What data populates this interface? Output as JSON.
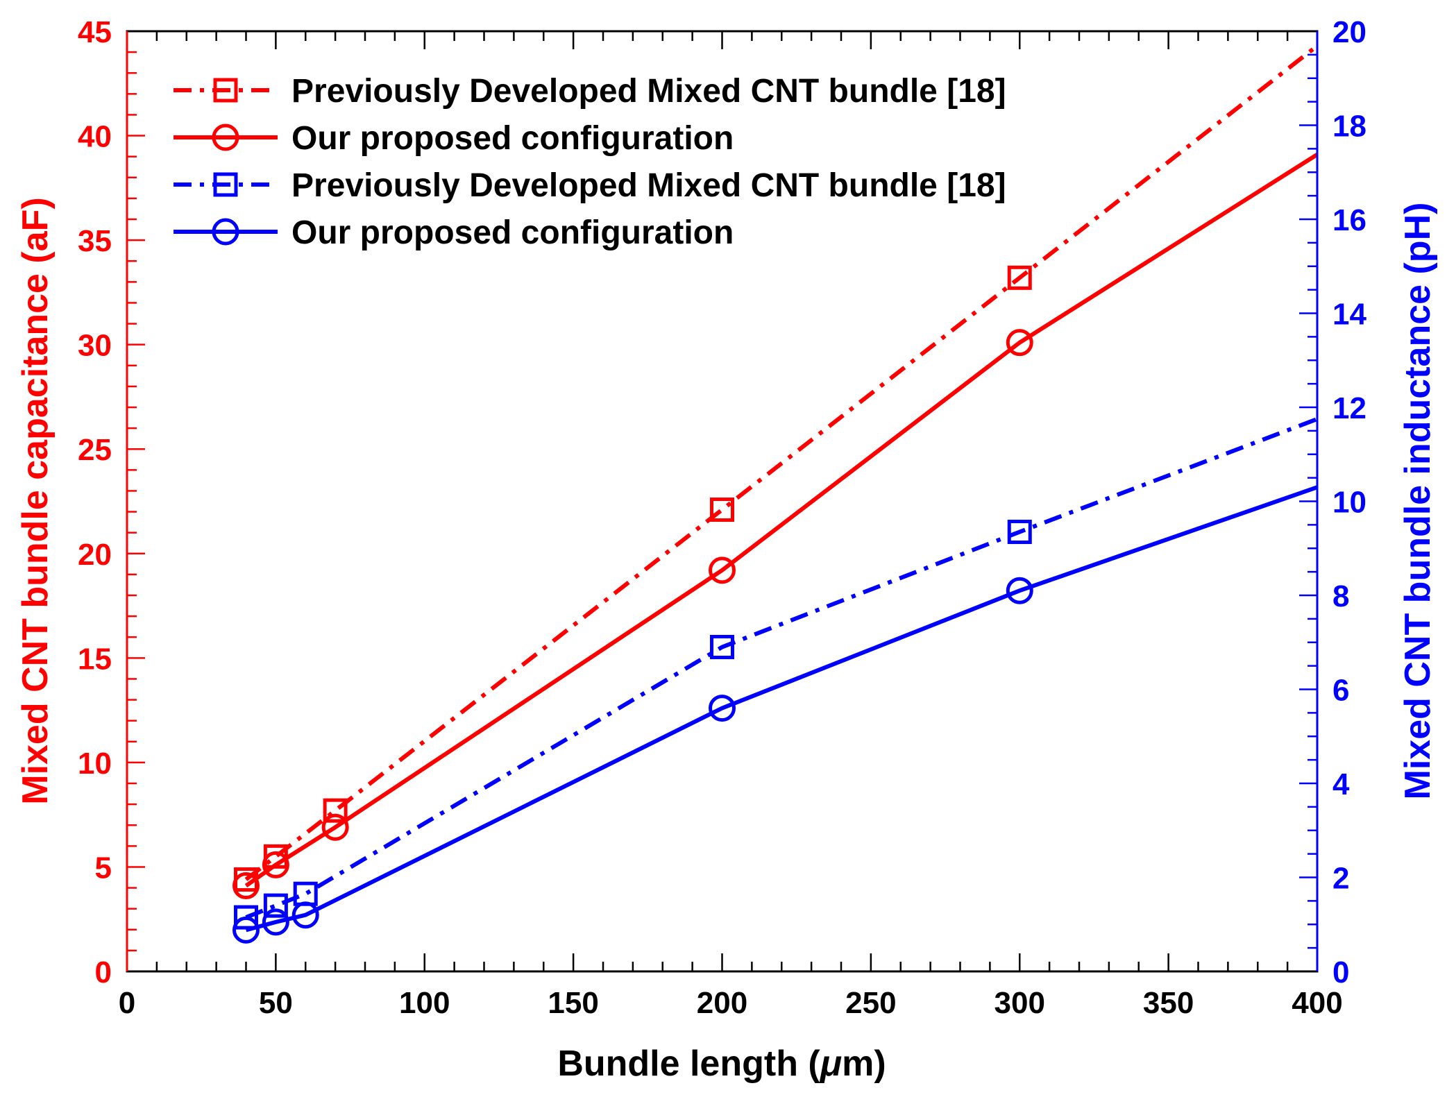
{
  "chart_data": {
    "type": "line",
    "xlabel_prefix": "Bundle length (",
    "xlabel_mu": "μ",
    "xlabel_suffix": "m)",
    "ylabel_left": "Mixed CNT bundle capacitance (aF)",
    "ylabel_right": "Mixed CNT bundle inductance (pH)",
    "xlim": [
      0,
      400
    ],
    "ylim_left": [
      0,
      45
    ],
    "ylim_right": [
      0,
      20
    ],
    "x_ticks": [
      "0",
      "50",
      "100",
      "150",
      "200",
      "250",
      "300",
      "350",
      "400"
    ],
    "y_left_ticks": [
      "0",
      "5",
      "10",
      "15",
      "20",
      "25",
      "30",
      "35",
      "40",
      "45"
    ],
    "y_right_ticks": [
      "0",
      "2",
      "4",
      "6",
      "8",
      "10",
      "12",
      "14",
      "16",
      "18",
      "20"
    ],
    "colors": {
      "left": "#ff0000",
      "right": "#0000ff",
      "axis": "#000000"
    },
    "series": [
      {
        "name": "Previously Developed Mixed CNT bundle [18]",
        "axis": "left",
        "color": "#ff0000",
        "style": "dashdot",
        "marker": "square",
        "x": [
          40,
          50,
          70,
          200,
          300,
          400
        ],
        "y": [
          4.4,
          5.5,
          7.7,
          22.1,
          33.2,
          44.3
        ],
        "marker_count": 5
      },
      {
        "name": "Our proposed configuration",
        "axis": "left",
        "color": "#ff0000",
        "style": "solid",
        "marker": "circle",
        "x": [
          40,
          50,
          70,
          200,
          300,
          400
        ],
        "y": [
          4.1,
          5.1,
          6.9,
          19.2,
          30.1,
          39.1
        ],
        "marker_count": 5
      },
      {
        "name": "Previously Developed Mixed CNT bundle [18]",
        "axis": "right",
        "color": "#0000ff",
        "style": "dashdot",
        "marker": "square",
        "x": [
          40,
          50,
          60,
          200,
          300,
          400
        ],
        "y": [
          1.15,
          1.4,
          1.65,
          6.9,
          9.35,
          11.75
        ],
        "marker_count": 5
      },
      {
        "name": "Our proposed configuration",
        "axis": "right",
        "color": "#0000ff",
        "style": "solid",
        "marker": "circle",
        "x": [
          40,
          50,
          60,
          200,
          300,
          400
        ],
        "y": [
          0.88,
          1.05,
          1.2,
          5.6,
          8.1,
          10.3
        ],
        "marker_count": 5
      }
    ],
    "legend_position": "top-left"
  }
}
